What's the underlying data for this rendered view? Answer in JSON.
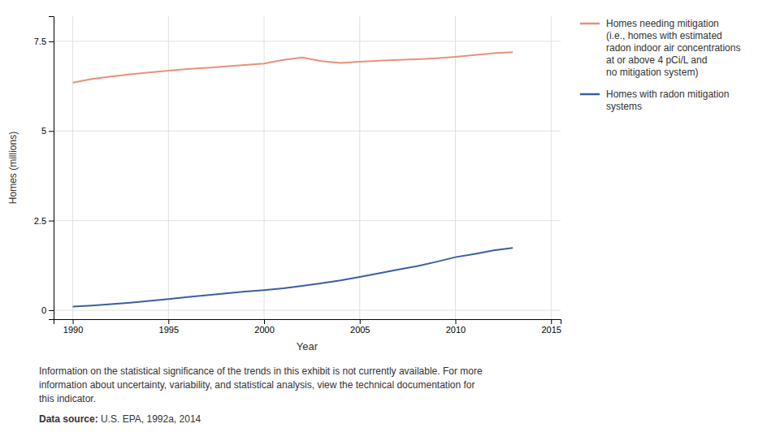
{
  "chart_data": {
    "type": "line",
    "x": [
      1990,
      1991,
      1992,
      1993,
      1994,
      1995,
      1996,
      1997,
      1998,
      1999,
      2000,
      2001,
      2002,
      2003,
      2004,
      2005,
      2006,
      2007,
      2008,
      2009,
      2010,
      2011,
      2012,
      2013
    ],
    "series": [
      {
        "name": "Homes needing mitigation\n(i.e., homes with estimated\nradon indoor air concentrations\nat or above 4 pCi/L and\nno mitigation system)",
        "color": "#e8917a",
        "values": [
          6.35,
          6.45,
          6.52,
          6.58,
          6.63,
          6.68,
          6.73,
          6.76,
          6.8,
          6.84,
          6.88,
          6.98,
          7.05,
          6.95,
          6.9,
          6.93,
          6.96,
          6.98,
          7.0,
          7.03,
          7.07,
          7.12,
          7.17,
          7.2
        ]
      },
      {
        "name": "Homes with radon mitigation\nsystems",
        "color": "#3a5fa0",
        "values": [
          0.1,
          0.13,
          0.17,
          0.21,
          0.26,
          0.31,
          0.37,
          0.42,
          0.47,
          0.52,
          0.56,
          0.61,
          0.68,
          0.75,
          0.83,
          0.93,
          1.03,
          1.13,
          1.23,
          1.35,
          1.48,
          1.57,
          1.67,
          1.74
        ]
      }
    ],
    "xlabel": "Year",
    "ylabel": "Homes (millions)",
    "xlim": [
      1989,
      2015.5
    ],
    "ylim": [
      -0.25,
      8.2
    ],
    "xticks": [
      1990,
      1995,
      2000,
      2005,
      2010,
      2015
    ],
    "yticks": [
      0,
      2.5,
      5,
      7.5
    ],
    "grid": true,
    "legend": "right",
    "annotations": [
      "Information on the statistical significance of the trends in this exhibit is not currently available. For more",
      "information about uncertainty, variability, and statistical analysis, view the technical documentation for",
      "this indicator."
    ],
    "source": {
      "label": "Data source:",
      "text": " U.S. EPA, 1992a, 2014"
    }
  }
}
